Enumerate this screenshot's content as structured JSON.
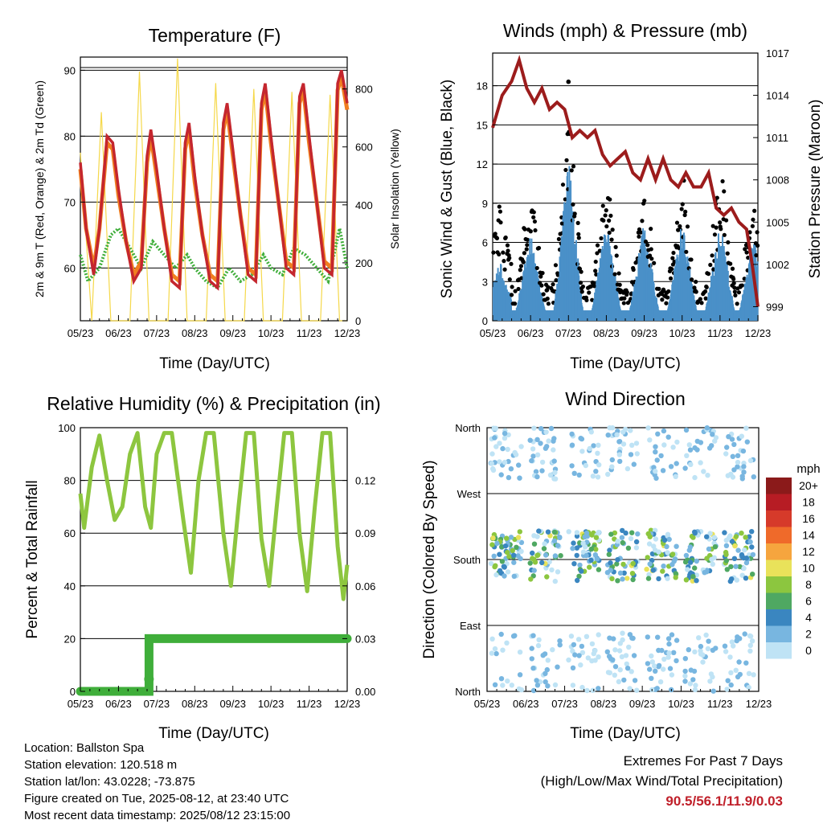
{
  "x_ticks": [
    "05/23",
    "06/23",
    "07/23",
    "08/23",
    "09/23",
    "10/23",
    "11/23",
    "12/23"
  ],
  "x_label": "Time (Day/UTC)",
  "chart_data": [
    {
      "type": "line",
      "title": "Temperature (F)",
      "ylabel": "2m & 9m T (Red, Orange) & 2m Td (Green)",
      "y2label": "Solar Insolation (Yellow)",
      "ylim": [
        52,
        92
      ],
      "yticks": [
        60,
        70,
        80,
        90
      ],
      "y2lim": [
        0,
        910
      ],
      "y2ticks": [
        0,
        200,
        400,
        600,
        800
      ],
      "series": [
        {
          "name": "2m T",
          "color": "#c4262e",
          "x": [
            0,
            0.15,
            0.35,
            0.5,
            0.7,
            0.85,
            1.0,
            1.2,
            1.4,
            1.6,
            1.75,
            1.85,
            2.0,
            2.2,
            2.4,
            2.6,
            2.75,
            2.85,
            3.0,
            3.2,
            3.4,
            3.6,
            3.75,
            3.85,
            4.0,
            4.2,
            4.4,
            4.6,
            4.75,
            4.85,
            5.0,
            5.2,
            5.4,
            5.6,
            5.75,
            5.85,
            6.0,
            6.2,
            6.4,
            6.6,
            6.75,
            6.85,
            7.0
          ],
          "y": [
            76,
            66,
            59,
            66,
            80,
            79,
            72,
            64,
            58,
            60,
            77,
            81,
            75,
            66,
            58,
            57,
            79,
            82,
            74,
            65,
            58,
            57,
            82,
            85,
            78,
            68,
            59,
            58,
            85,
            88,
            80,
            70,
            60,
            59,
            86,
            88,
            80,
            70,
            60,
            59,
            88,
            90,
            85
          ]
        },
        {
          "name": "9m T",
          "color": "#f07e20",
          "x": [
            0,
            0.15,
            0.35,
            0.5,
            0.7,
            0.85,
            1.0,
            1.2,
            1.4,
            1.6,
            1.75,
            1.85,
            2.0,
            2.2,
            2.4,
            2.6,
            2.75,
            2.85,
            3.0,
            3.2,
            3.4,
            3.6,
            3.75,
            3.85,
            4.0,
            4.2,
            4.4,
            4.6,
            4.75,
            4.85,
            5.0,
            5.2,
            5.4,
            5.6,
            5.75,
            5.85,
            6.0,
            6.2,
            6.4,
            6.6,
            6.75,
            6.85,
            7.0
          ],
          "y": [
            75,
            66,
            60,
            66,
            79,
            78,
            71,
            64,
            59,
            61,
            76,
            80,
            74,
            66,
            59,
            58,
            78,
            81,
            73,
            65,
            59,
            58,
            81,
            84,
            77,
            68,
            60,
            59,
            84,
            87,
            79,
            70,
            61,
            60,
            85,
            87,
            79,
            70,
            61,
            60,
            87,
            89,
            84
          ]
        },
        {
          "name": "2m Td",
          "color": "#3fae3a",
          "x": [
            0,
            0.2,
            0.5,
            0.8,
            1.0,
            1.3,
            1.6,
            1.9,
            2.2,
            2.5,
            2.8,
            3.0,
            3.3,
            3.6,
            3.9,
            4.2,
            4.5,
            4.8,
            5.0,
            5.3,
            5.6,
            5.9,
            6.2,
            6.5,
            6.8,
            7.0
          ],
          "y": [
            62,
            58,
            60,
            65,
            66,
            63,
            60,
            64,
            62,
            60,
            62,
            60,
            58,
            57,
            60,
            58,
            59,
            62,
            60,
            59,
            63,
            62,
            60,
            58,
            66,
            60
          ]
        },
        {
          "name": "Solar Insolation",
          "axis": "y2",
          "color": "#f5d84a",
          "x": [
            0,
            0.3,
            0.55,
            0.8,
            1.0,
            1.3,
            1.55,
            1.8,
            2.0,
            2.3,
            2.55,
            2.8,
            3.0,
            3.3,
            3.55,
            3.8,
            4.0,
            4.3,
            4.55,
            4.8,
            5.0,
            5.3,
            5.55,
            5.8,
            6.0,
            6.3,
            6.55,
            6.8,
            7.0
          ],
          "y": [
            580,
            0,
            720,
            0,
            0,
            0,
            860,
            0,
            0,
            0,
            905,
            0,
            0,
            0,
            820,
            0,
            0,
            0,
            800,
            0,
            0,
            0,
            790,
            0,
            0,
            0,
            780,
            0,
            0
          ]
        }
      ]
    },
    {
      "type": "scatter",
      "title": "Winds (mph) & Pressure (mb)",
      "ylabel": "Sonic Wind & Gust (Blue, Black)",
      "y2label": "Station Pressure (Maroon)",
      "ylim": [
        0,
        20.5
      ],
      "yticks": [
        0,
        3,
        6,
        9,
        12,
        15,
        18
      ],
      "y2lim": [
        998,
        1017
      ],
      "y2ticks": [
        999,
        1002,
        1005,
        1008,
        1011,
        1014,
        1017
      ],
      "series": [
        {
          "name": "Sonic Wind",
          "color": "#4a90c8",
          "peaks_x": [
            0.2,
            1.0,
            2.0,
            3.0,
            4.0,
            5.0,
            6.0,
            6.9
          ],
          "peaks_y": [
            4,
            6,
            12,
            7,
            7,
            7,
            7,
            6
          ]
        },
        {
          "name": "Gust",
          "color": "#000000",
          "peaks_x": [
            0.2,
            1.0,
            2.0,
            3.0,
            4.0,
            5.0,
            6.0,
            6.9
          ],
          "peaks_y": [
            10,
            10,
            18.3,
            11,
            10,
            11,
            13,
            9
          ]
        },
        {
          "name": "Station Pressure",
          "axis": "y2",
          "color": "#9c1c1c",
          "x": [
            0,
            0.25,
            0.5,
            0.7,
            0.9,
            1.1,
            1.3,
            1.5,
            1.7,
            1.9,
            2.1,
            2.3,
            2.5,
            2.7,
            2.9,
            3.1,
            3.3,
            3.5,
            3.7,
            3.9,
            4.1,
            4.3,
            4.5,
            4.7,
            4.9,
            5.1,
            5.3,
            5.5,
            5.7,
            5.9,
            6.1,
            6.3,
            6.5,
            6.7,
            6.85,
            7.0
          ],
          "y": [
            1011.7,
            1014,
            1015,
            1016.5,
            1014.5,
            1013.5,
            1014.5,
            1013,
            1013.5,
            1013,
            1011,
            1011.5,
            1011,
            1011.5,
            1009.8,
            1009,
            1009.5,
            1010,
            1008.5,
            1008,
            1009.5,
            1008,
            1009.5,
            1008,
            1007.5,
            1008.5,
            1007.5,
            1007.5,
            1008.5,
            1006,
            1005.5,
            1006,
            1005,
            1004.5,
            1002,
            999
          ]
        }
      ]
    },
    {
      "type": "line",
      "title": "Relative Humidity (%) & Precipitation (in)",
      "ylabel": "Percent & Total Rainfall",
      "ylim": [
        0,
        100
      ],
      "yticks": [
        0,
        20,
        40,
        60,
        80,
        100
      ],
      "y2lim": [
        0,
        0.15
      ],
      "y2ticks": [
        "0.00",
        "0.03",
        "0.06",
        "0.09",
        "0.12"
      ],
      "series": [
        {
          "name": "Relative Humidity",
          "color": "#8dc63f",
          "x": [
            0,
            0.1,
            0.3,
            0.5,
            0.7,
            0.9,
            1.1,
            1.3,
            1.5,
            1.7,
            1.85,
            2.0,
            2.2,
            2.4,
            2.7,
            2.9,
            3.1,
            3.3,
            3.5,
            3.75,
            3.95,
            4.15,
            4.35,
            4.55,
            4.75,
            4.95,
            5.15,
            5.35,
            5.55,
            5.75,
            5.95,
            6.15,
            6.35,
            6.55,
            6.75,
            6.9,
            7.0
          ],
          "y": [
            75,
            62,
            85,
            97,
            80,
            65,
            70,
            90,
            98,
            70,
            62,
            90,
            98,
            98,
            65,
            45,
            80,
            98,
            98,
            60,
            40,
            70,
            98,
            98,
            58,
            40,
            70,
            98,
            98,
            60,
            38,
            70,
            98,
            98,
            55,
            35,
            48
          ]
        },
        {
          "name": "Total Precipitation",
          "axis": "y2",
          "color": "#3fae3a",
          "x": [
            0,
            1.8,
            1.8,
            7.0
          ],
          "y": [
            0,
            0,
            0.03,
            0.03
          ]
        }
      ]
    },
    {
      "type": "scatter",
      "title": "Wind Direction",
      "ylabel": "Direction (Colored By Speed)",
      "yticks": [
        "North",
        "East",
        "South",
        "West",
        "North"
      ],
      "ylim": [
        0,
        360
      ],
      "colorbar": {
        "title": "mph",
        "labels": [
          "20+",
          "18",
          "16",
          "14",
          "12",
          "10",
          "8",
          "6",
          "4",
          "2",
          "0"
        ],
        "colors": [
          "#8b1a1a",
          "#b71c24",
          "#d63a2a",
          "#ef6a2a",
          "#f6a53e",
          "#e9e25a",
          "#8cc63f",
          "#4fa862",
          "#3a86c0",
          "#78b6e0",
          "#bfe3f5"
        ]
      }
    }
  ],
  "info": {
    "location": "Location: Ballston Spa",
    "elevation": "Station elevation: 120.518 m",
    "latlon": "Station lat/lon: 43.0228; -73.875",
    "created": "Figure created on Tue, 2025-08-12, at 23:40 UTC",
    "timestamp": "Most recent data timestamp: 2025/08/12 23:15:00"
  },
  "extremes": {
    "line1": "Extremes For Past 7 Days",
    "line2": "(High/Low/Max Wind/Total Precipitation)",
    "values": "90.5/56.1/11.9/0.03"
  }
}
